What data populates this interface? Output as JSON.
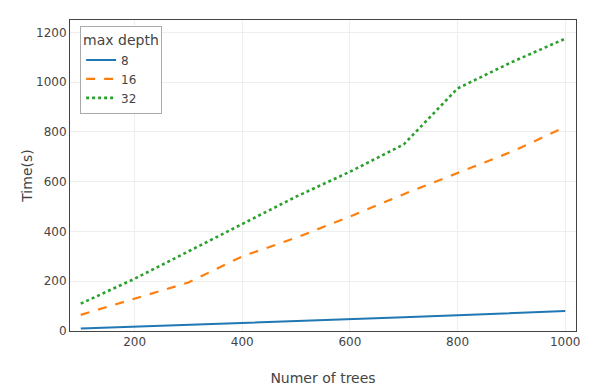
{
  "chart_data": {
    "type": "line",
    "x": [
      100,
      200,
      300,
      400,
      500,
      600,
      700,
      800,
      900,
      1000
    ],
    "series": [
      {
        "name": "8",
        "color": "#1f77b4",
        "line_style": "solid",
        "values": [
          10,
          17,
          24,
          32,
          40,
          47,
          55,
          63,
          72,
          80
        ]
      },
      {
        "name": "16",
        "color": "#ff7f0e",
        "line_style": "dash",
        "values": [
          65,
          130,
          195,
          300,
          375,
          460,
          550,
          635,
          720,
          820
        ]
      },
      {
        "name": "32",
        "color": "#2ca02c",
        "line_style": "dot",
        "values": [
          110,
          210,
          320,
          430,
          540,
          640,
          750,
          975,
          1080,
          1175
        ]
      }
    ],
    "xlabel": "Numer of trees",
    "ylabel": "Time(s)",
    "legend_title": "max depth",
    "legend": "upper left",
    "xlim": [
      80,
      1020
    ],
    "ylim": [
      0,
      1250
    ],
    "xticks": [
      200,
      400,
      600,
      800,
      1000
    ],
    "yticks": [
      0,
      200,
      400,
      600,
      800,
      1000,
      1200
    ],
    "grid": true
  }
}
